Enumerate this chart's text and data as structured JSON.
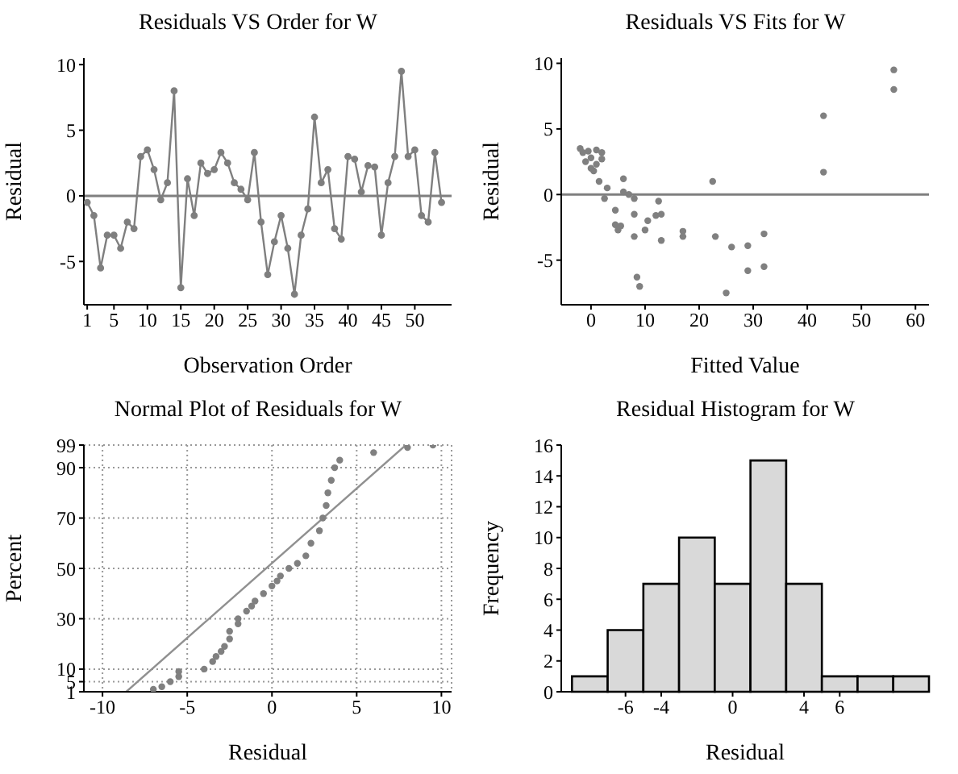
{
  "chart_data": [
    {
      "type": "line",
      "title": "Residuals VS Order for W",
      "xlabel": "Observation Order",
      "ylabel": "Residual",
      "color": "#7f7f7f",
      "marker": "circle",
      "x": [
        1,
        2,
        3,
        4,
        5,
        6,
        7,
        8,
        9,
        10,
        11,
        12,
        13,
        14,
        15,
        16,
        17,
        18,
        19,
        20,
        21,
        22,
        23,
        24,
        25,
        26,
        27,
        28,
        29,
        30,
        31,
        32,
        33,
        34,
        35,
        36,
        37,
        38,
        39,
        40,
        41,
        42,
        43,
        44,
        45,
        46,
        47,
        48,
        49,
        50,
        51,
        52,
        53,
        54
      ],
      "values": [
        -0.5,
        -1.5,
        -5.5,
        -3,
        -3,
        -4,
        -2,
        -2.5,
        3,
        3.5,
        2,
        -0.3,
        1,
        8,
        -7,
        1.3,
        -1.5,
        2.5,
        1.7,
        2,
        3.3,
        2.5,
        1,
        0.5,
        -0.3,
        3.3,
        -2,
        -6,
        -3.5,
        -1.5,
        -4,
        -7.5,
        -3,
        -1,
        6,
        1,
        2,
        -2.5,
        -3.3,
        3,
        2.8,
        0.3,
        2.3,
        2.2,
        -3,
        1,
        3,
        9.5,
        3,
        3.5,
        -1.5,
        -2,
        3.3,
        -0.5
      ],
      "xlim": [
        0.5,
        55.5
      ],
      "xticks": [
        1,
        5,
        10,
        15,
        20,
        25,
        30,
        35,
        40,
        45,
        50
      ],
      "ylim": [
        -8.3,
        10.5
      ],
      "yticks": [
        -5,
        0,
        5,
        10
      ],
      "ref_lines": [
        {
          "axis": "y",
          "value": 0,
          "color": "#7f7f7f"
        }
      ]
    },
    {
      "type": "scatter",
      "title": "Residuals VS Fits for W",
      "xlabel": "Fitted Value",
      "ylabel": "Residual",
      "color": "#808080",
      "marker": "circle",
      "x": [
        -2,
        -1.5,
        -1,
        -0.5,
        0,
        0,
        0.5,
        1,
        1,
        1.5,
        2,
        2,
        2.5,
        3,
        4.5,
        4.5,
        5,
        5.5,
        6,
        6,
        7,
        8,
        8,
        8,
        8.5,
        9,
        10,
        10.5,
        12,
        13,
        12.5,
        13,
        17,
        17,
        22.5,
        23,
        25,
        26,
        29,
        29,
        32,
        32,
        43,
        43,
        56,
        56
      ],
      "values": [
        3.5,
        3.2,
        2.5,
        3.3,
        2,
        2.8,
        1.8,
        3.4,
        2.3,
        1,
        3.2,
        2.7,
        -0.3,
        0.5,
        -1.2,
        -2.3,
        -2.7,
        -2.4,
        0.2,
        1.2,
        0,
        -1.5,
        -3.2,
        -0.3,
        -6.3,
        -7,
        -2.7,
        -2,
        -1.6,
        -1.5,
        -0.5,
        -3.5,
        -2.8,
        -3.2,
        1,
        -3.2,
        -7.5,
        -4,
        -3.9,
        -5.8,
        -3,
        -5.5,
        6,
        1.7,
        9.5,
        8
      ],
      "xlim": [
        -5.5,
        62.5
      ],
      "xticks": [
        0,
        10,
        20,
        30,
        40,
        50,
        60
      ],
      "ylim": [
        -8.4,
        10.4
      ],
      "yticks": [
        -5,
        0,
        5,
        10
      ],
      "ref_lines": [
        {
          "axis": "y",
          "value": 0,
          "color": "#7f7f7f"
        }
      ]
    },
    {
      "type": "scatter",
      "title": "Normal Plot of Residuals for W",
      "xlabel": "Residual",
      "ylabel": "Percent",
      "grid": true,
      "series": [
        {
          "color": "#808080",
          "marker": "circle",
          "x": [
            -7,
            -6.5,
            -6,
            -5.5,
            -5.5,
            -4,
            -3.5,
            -3.3,
            -3,
            -2.8,
            -2.5,
            -2.5,
            -2,
            -2,
            -1.5,
            -1.2,
            -1,
            -0.5,
            0,
            0.3,
            0.5,
            1,
            1.5,
            2,
            2.3,
            2.8,
            3,
            3.2,
            3.3,
            3.5,
            3.7,
            4,
            6,
            8,
            9.5
          ],
          "values": [
            2,
            3,
            5,
            7,
            9,
            10,
            13,
            15,
            17,
            19,
            22,
            25,
            28,
            30,
            33,
            35,
            37,
            40,
            43,
            45,
            47,
            50,
            52,
            55,
            60,
            65,
            70,
            75,
            80,
            85,
            90,
            93,
            96,
            98,
            99
          ]
        },
        {
          "type": "line",
          "color": "#909090",
          "marker": "none",
          "x": [
            -8.6,
            7.9
          ],
          "values": [
            1,
            99
          ]
        }
      ],
      "xlim": [
        -11.1,
        10.6
      ],
      "xticks": [
        -10,
        -5,
        0,
        5,
        10
      ],
      "ylim": [
        1,
        99
      ],
      "yticks": [
        1,
        5,
        10,
        30,
        50,
        70,
        90,
        99
      ]
    },
    {
      "type": "histogram",
      "title": "Residual Histogram for W",
      "xlabel": "Residual",
      "ylabel": "Frequency",
      "color": "#d9d9d9",
      "bins": [
        -9,
        -7,
        -5,
        -3,
        -1,
        1,
        3,
        5,
        7,
        9,
        11
      ],
      "values": [
        1,
        4,
        7,
        10,
        7,
        15,
        7,
        1,
        1,
        1
      ],
      "xlim": [
        -9.6,
        11
      ],
      "xticks": [
        -6,
        -4,
        0,
        4,
        6
      ],
      "ylim": [
        0,
        16
      ],
      "yticks": [
        0,
        2,
        4,
        6,
        8,
        10,
        12,
        14,
        16
      ]
    }
  ]
}
